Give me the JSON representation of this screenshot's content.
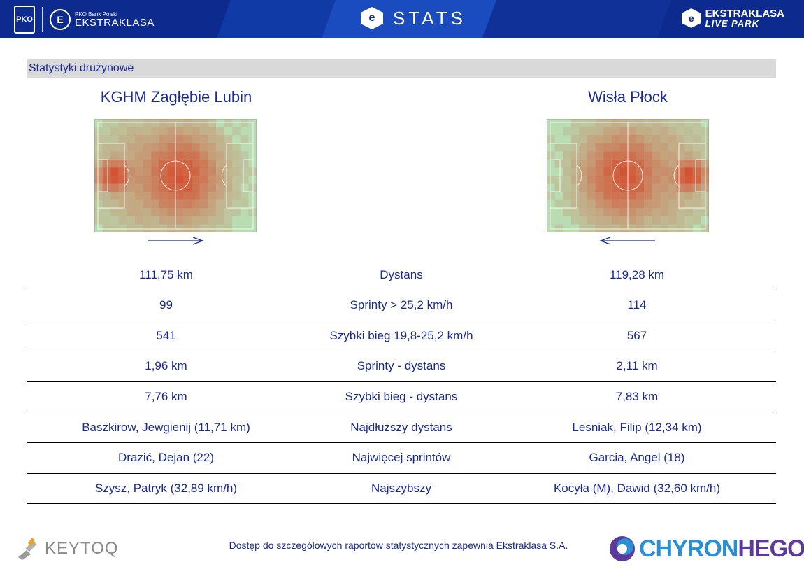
{
  "header": {
    "left_brand_small": "PKO Bank Polski",
    "left_brand_big": "EKSTRAKLASA",
    "pko_label": "PKO",
    "center_title": "STATS",
    "right_brand_line1": "EKSTRAKLASA",
    "right_brand_line2": "LIVE PARK"
  },
  "section": {
    "title": "Statystyki drużynowe"
  },
  "teams": {
    "left": {
      "name": "KGHM Zagłębie Lubin",
      "attack_direction": "right"
    },
    "right": {
      "name": "Wisła Płock",
      "attack_direction": "left"
    }
  },
  "stats": [
    {
      "left": "111,75 km",
      "label": "Dystans",
      "right": "119,28 km"
    },
    {
      "left": "99",
      "label": "Sprinty > 25,2 km/h",
      "right": "114"
    },
    {
      "left": "541",
      "label": "Szybki bieg 19,8-25,2 km/h",
      "right": "567"
    },
    {
      "left": "1,96 km",
      "label": "Sprinty - dystans",
      "right": "2,11 km"
    },
    {
      "left": "7,76 km",
      "label": "Szybki bieg - dystans",
      "right": "7,83 km"
    },
    {
      "left": "Baszkirow, Jewgienij (11,71 km)",
      "label": "Najdłuższy dystans",
      "right": "Lesniak, Filip (12,34 km)"
    },
    {
      "left": "Drazić, Dejan (22)",
      "label": "Najwięcej sprintów",
      "right": "Garcia, Angel (18)"
    },
    {
      "left": "Szysz, Patryk (32,89 km/h)",
      "label": "Najszybszy",
      "right": "Kocyła (M), Dawid (32,60 km/h)"
    }
  ],
  "footer": {
    "left_logo": "KEYTOQ",
    "note": "Dostęp do szczegółowych raportów statystycznych zapewnia Ekstraklasa S.A.",
    "right_logo_a": "CHYRON",
    "right_logo_b": "HEGO"
  },
  "colors": {
    "header_bg": "#0d2b8f",
    "text_blue": "#1a2a8c",
    "section_bg": "#d9d9d9",
    "pitch_green": "#b9dcb3",
    "heat_red": "#d9391b"
  }
}
